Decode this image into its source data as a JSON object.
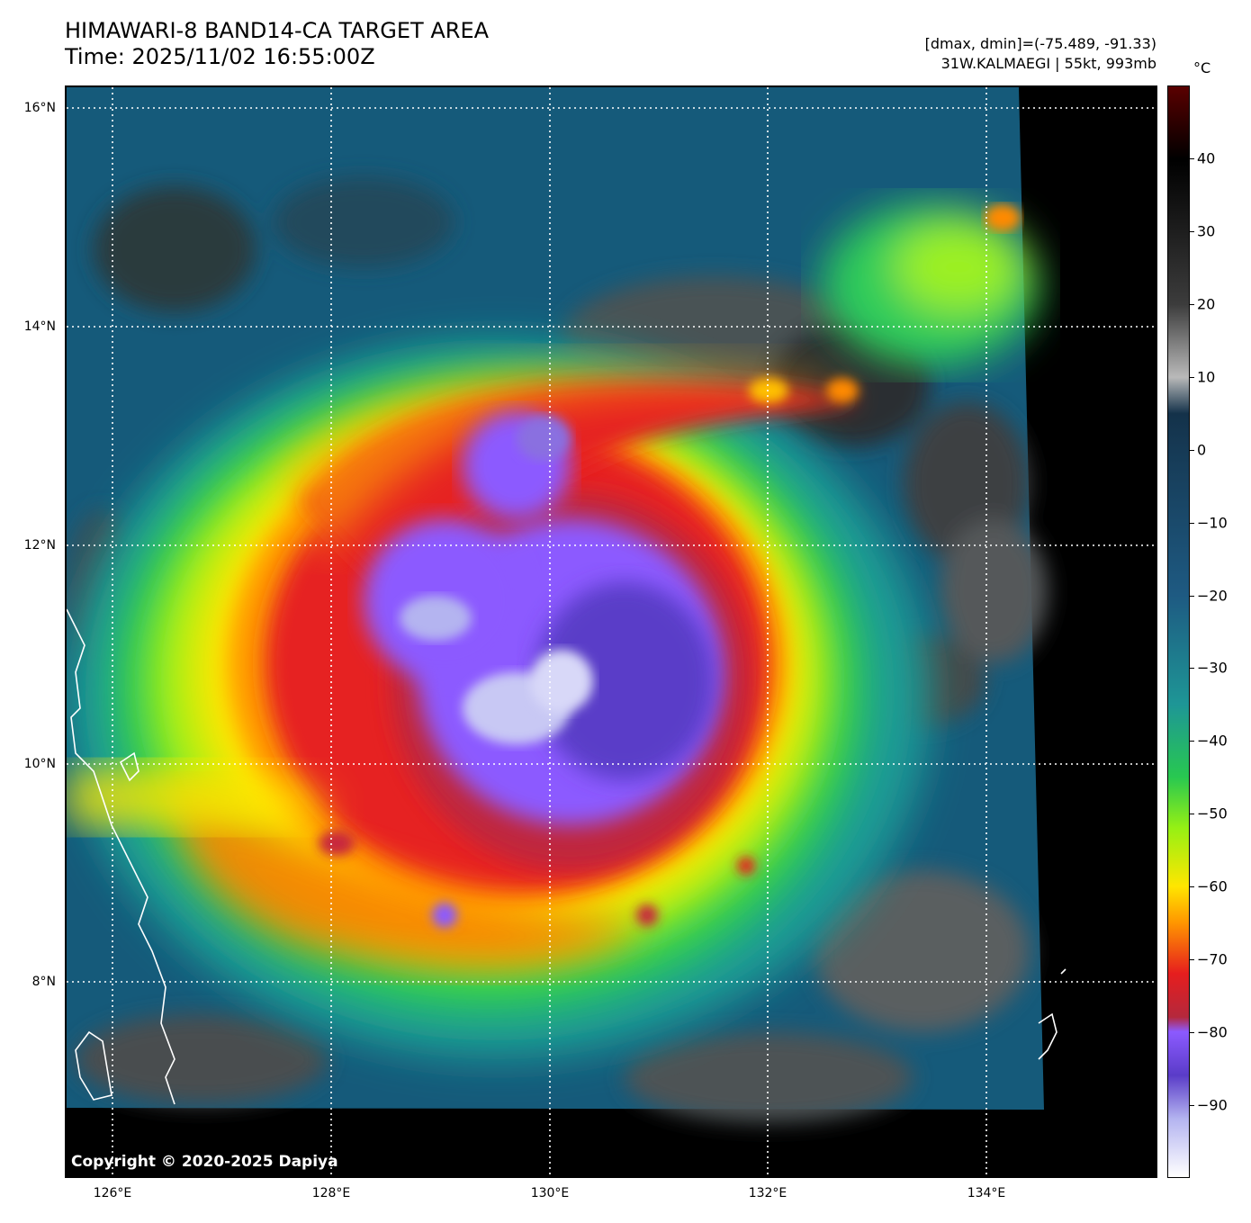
{
  "header": {
    "title_line1": "HIMAWARI-8 BAND14-CA TARGET AREA",
    "title_line2": "Time: 2025/11/02 16:55:00Z",
    "info_line1": "[dmax, dmin]=(-75.489, -91.33)",
    "info_line2": "31W.KALMAEGI | 55kt, 993mb"
  },
  "map": {
    "copyright": "Copyright © 2020-2025 Dapiya",
    "lat_labels": [
      "16°N",
      "14°N",
      "12°N",
      "10°N",
      "8°N"
    ],
    "lon_labels": [
      "126°E",
      "128°E",
      "130°E",
      "132°E",
      "134°E"
    ],
    "extent": {
      "lon_min": 125.58,
      "lon_max": 135.58,
      "lat_min": 6.23,
      "lat_max": 16.21
    },
    "storm_center": {
      "lon": 130.5,
      "lat": 10.8
    },
    "gridlines": "dotted-white"
  },
  "colorbar": {
    "unit": "°C",
    "ticks": [
      "40",
      "30",
      "20",
      "10",
      "0",
      "−10",
      "−20",
      "−30",
      "−40",
      "−50",
      "−60",
      "−70",
      "−80",
      "−90"
    ],
    "range": [
      -100,
      50
    ],
    "stops": [
      {
        "value": 50,
        "color": "#5a0000"
      },
      {
        "value": 40,
        "color": "#000000"
      },
      {
        "value": 20,
        "color": "#3c3c3c"
      },
      {
        "value": 10,
        "color": "#b9b9b9"
      },
      {
        "value": 5,
        "color": "#14324a"
      },
      {
        "value": -20,
        "color": "#1e5a82"
      },
      {
        "value": -35,
        "color": "#1e9696"
      },
      {
        "value": -45,
        "color": "#28c850"
      },
      {
        "value": -52,
        "color": "#96f014"
      },
      {
        "value": -60,
        "color": "#ffe600"
      },
      {
        "value": -65,
        "color": "#ff9600"
      },
      {
        "value": -72,
        "color": "#e61e1e"
      },
      {
        "value": -78,
        "color": "#b4283c"
      },
      {
        "value": -80,
        "color": "#8c5aff"
      },
      {
        "value": -86,
        "color": "#5a3cc8"
      },
      {
        "value": -92,
        "color": "#b4b4f0"
      },
      {
        "value": -100,
        "color": "#ffffff"
      }
    ]
  }
}
